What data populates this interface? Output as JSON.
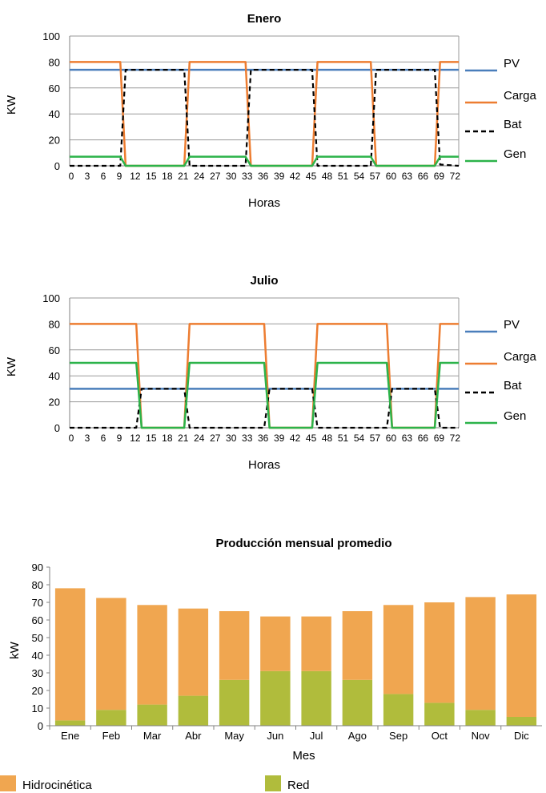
{
  "chart_data": [
    {
      "type": "line",
      "title": "Enero",
      "xlabel": "Horas",
      "ylabel": "KW",
      "ylim": [
        0,
        100
      ],
      "yticks": [
        0,
        20,
        40,
        60,
        80,
        100
      ],
      "xlim": [
        0,
        73
      ],
      "xticks": [
        0,
        3,
        6,
        9,
        12,
        15,
        18,
        21,
        24,
        27,
        30,
        33,
        36,
        39,
        42,
        45,
        48,
        51,
        54,
        57,
        60,
        63,
        66,
        69,
        72
      ],
      "grid": true,
      "legend": "right",
      "series": [
        {
          "name": "PV",
          "color": "#4a7ebb",
          "dash": false,
          "x": [
            0,
            73
          ],
          "y": [
            74,
            74
          ]
        },
        {
          "name": "Carga",
          "color": "#ed7d31",
          "dash": false,
          "x": [
            0,
            9.5,
            10.5,
            21.5,
            22.5,
            33,
            34,
            45.5,
            46.5,
            56.5,
            57.5,
            68.5,
            69.5,
            73
          ],
          "y": [
            80,
            80,
            0,
            0,
            80,
            80,
            0,
            0,
            80,
            80,
            0,
            0,
            80,
            80
          ]
        },
        {
          "name": "Bat",
          "color": "#000000",
          "dash": true,
          "x": [
            0,
            9.5,
            10.5,
            21.5,
            22.5,
            33,
            34,
            45.5,
            46.5,
            56.5,
            57.5,
            68.5,
            69.5,
            73
          ],
          "y": [
            0,
            0,
            74,
            74,
            0,
            0,
            74,
            74,
            0,
            0,
            74,
            74,
            1,
            0
          ]
        },
        {
          "name": "Gen",
          "color": "#2cb34a",
          "dash": false,
          "x": [
            0,
            9.5,
            10.5,
            21.5,
            22.5,
            33,
            34,
            45.5,
            46.5,
            56.5,
            57.5,
            68.5,
            69.5,
            73
          ],
          "y": [
            7,
            7,
            0,
            0,
            7,
            7,
            0,
            0,
            7,
            7,
            0,
            0,
            7,
            7
          ]
        }
      ]
    },
    {
      "type": "line",
      "title": "Julio",
      "xlabel": "Horas",
      "ylabel": "KW",
      "ylim": [
        0,
        100
      ],
      "yticks": [
        0,
        20,
        40,
        60,
        80,
        100
      ],
      "xlim": [
        0,
        73
      ],
      "xticks": [
        0,
        3,
        6,
        9,
        12,
        15,
        18,
        21,
        24,
        27,
        30,
        33,
        36,
        39,
        42,
        45,
        48,
        51,
        54,
        57,
        60,
        63,
        66,
        69,
        72
      ],
      "grid": true,
      "legend": "right",
      "series": [
        {
          "name": "PV",
          "color": "#4a7ebb",
          "dash": false,
          "x": [
            0,
            73
          ],
          "y": [
            30,
            30
          ]
        },
        {
          "name": "Carga",
          "color": "#ed7d31",
          "dash": false,
          "x": [
            0,
            12.5,
            13.5,
            21.5,
            22.5,
            36.5,
            37.5,
            45.5,
            46.5,
            59.5,
            60.5,
            68.5,
            69.5,
            73
          ],
          "y": [
            80,
            80,
            0,
            0,
            80,
            80,
            0,
            0,
            80,
            80,
            0,
            0,
            80,
            80
          ]
        },
        {
          "name": "Bat",
          "color": "#000000",
          "dash": true,
          "x": [
            0,
            12.5,
            13.5,
            21.5,
            22.5,
            36.5,
            37.5,
            45.5,
            46.5,
            59.5,
            60.5,
            68.5,
            69.5,
            73
          ],
          "y": [
            0,
            0,
            30,
            30,
            0,
            0,
            30,
            30,
            0,
            0,
            30,
            30,
            0,
            0
          ]
        },
        {
          "name": "Gen",
          "color": "#2cb34a",
          "dash": false,
          "x": [
            0,
            12.5,
            13.5,
            21.5,
            22.5,
            36.5,
            37.5,
            45.5,
            46.5,
            59.5,
            60.5,
            68.5,
            69.5,
            73
          ],
          "y": [
            50,
            50,
            0,
            0,
            50,
            50,
            0,
            0,
            50,
            50,
            0,
            0,
            50,
            50
          ]
        }
      ]
    },
    {
      "type": "bar",
      "stacked": true,
      "title": "Producción mensual promedio",
      "xlabel": "Mes",
      "ylabel": "kW",
      "ylim": [
        0,
        90
      ],
      "yticks": [
        0,
        10,
        20,
        30,
        40,
        50,
        60,
        70,
        80,
        90
      ],
      "grid": false,
      "legend": "bottom",
      "categories": [
        "Ene",
        "Feb",
        "Mar",
        "Abr",
        "May",
        "Jun",
        "Jul",
        "Ago",
        "Sep",
        "Oct",
        "Nov",
        "Dic"
      ],
      "series": [
        {
          "name": "Red",
          "color": "#b0bc3c",
          "values": [
            3,
            9,
            12,
            17,
            26,
            31,
            31,
            26,
            18,
            13,
            9,
            5
          ]
        },
        {
          "name": "Hidrocinética",
          "color": "#f0a650",
          "values": [
            75,
            63.5,
            56.5,
            49.5,
            39,
            31,
            31,
            39,
            50.5,
            57,
            64,
            69.5
          ]
        }
      ]
    }
  ]
}
